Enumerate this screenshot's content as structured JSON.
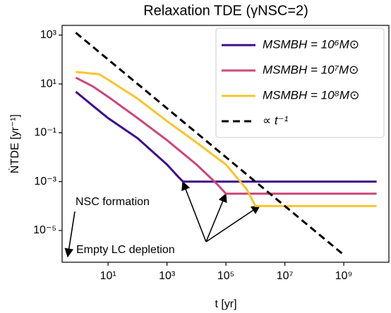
{
  "chart_data": {
    "type": "line",
    "title": "Relaxation TDE (γNSC=2)",
    "x_label": "t [yr]",
    "y_label": "ṄTDE [yr⁻¹]",
    "log_x": true,
    "log_y": true,
    "xlim": [
      0.275,
      34000000000
    ],
    "ylim": [
      2500,
      5e-07
    ],
    "xticks": [
      {
        "value": 10,
        "label": "10¹"
      },
      {
        "value": 1000,
        "label": "10³"
      },
      {
        "value": 100000,
        "label": "10⁵"
      },
      {
        "value": 10000000,
        "label": "10⁷"
      },
      {
        "value": 1000000000,
        "label": "10⁹"
      }
    ],
    "yticks": [
      {
        "value": 1000,
        "label": "10³"
      },
      {
        "value": 10,
        "label": "10¹"
      },
      {
        "value": 0.1,
        "label": "10⁻¹"
      },
      {
        "value": 0.001,
        "label": "10⁻³"
      },
      {
        "value": 1e-05,
        "label": "10⁻⁵"
      }
    ],
    "legend": "upper right",
    "series": [
      {
        "name": "MSMBH = 10⁶M⊙",
        "color": "#3d0c8a",
        "dash": false,
        "x": [
          0.8,
          3,
          10,
          100,
          1000,
          2500,
          3500,
          13000000000
        ],
        "values": [
          4.8,
          1.3,
          0.4,
          0.06,
          0.005,
          0.0015,
          0.001,
          0.001
        ]
      },
      {
        "name": "MSMBH = 10⁷M⊙",
        "color": "#cc4778",
        "dash": false,
        "x": [
          0.8,
          3,
          10,
          100,
          1000,
          10000,
          50000,
          100000,
          13000000000
        ],
        "values": [
          18,
          8,
          3,
          0.4,
          0.05,
          0.005,
          0.0008,
          0.00032,
          0.00032
        ]
      },
      {
        "name": "MSMBH = 10⁸M⊙",
        "color": "#f8c52c",
        "dash": false,
        "x": [
          0.8,
          5,
          10,
          100,
          1000,
          10000,
          100000,
          500000,
          1000000,
          13000000000
        ],
        "values": [
          31,
          25,
          15,
          2.5,
          0.3,
          0.04,
          0.005,
          0.0005,
          0.0001,
          0.0001
        ]
      },
      {
        "name": "∝ t⁻¹",
        "color": "#000000",
        "dash": true,
        "x": [
          0.8,
          1000000000
        ],
        "values": [
          1250,
          1e-06
        ]
      }
    ],
    "annotations": [
      "NSC formation",
      "Empty LC depletion"
    ]
  }
}
